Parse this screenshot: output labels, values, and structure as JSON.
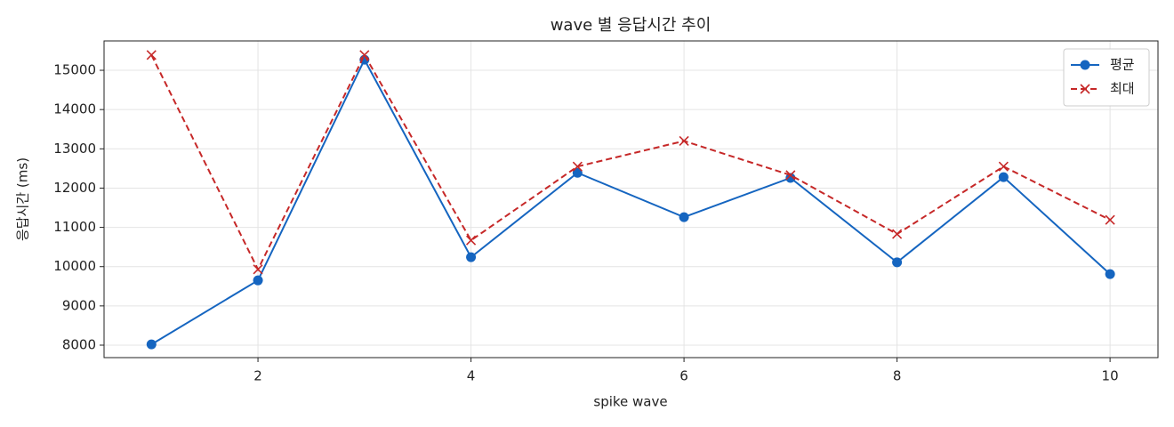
{
  "chart_data": {
    "type": "line",
    "title": "wave 별 응답시간 추이",
    "xlabel": "spike wave",
    "ylabel": "응답시간 (ms)",
    "x": [
      1,
      2,
      3,
      4,
      5,
      6,
      7,
      8,
      9,
      10
    ],
    "series": [
      {
        "name": "평균",
        "color": "#1565c0",
        "marker": "o",
        "linestyle": "solid",
        "values": [
          8020,
          9650,
          15270,
          10240,
          12390,
          11260,
          12260,
          10110,
          12280,
          9810
        ]
      },
      {
        "name": "최대",
        "color": "#c62828",
        "marker": "x",
        "linestyle": "dashed",
        "values": [
          15390,
          9930,
          15390,
          10670,
          12550,
          13200,
          12330,
          10830,
          12550,
          11190
        ]
      }
    ],
    "xlim": [
      0.555,
      10.45
    ],
    "xticks": [
      2,
      4,
      6,
      8,
      10
    ],
    "ylim": [
      7683,
      15748
    ],
    "yticks": [
      8000,
      9000,
      10000,
      11000,
      12000,
      13000,
      14000,
      15000
    ],
    "grid": true,
    "legend": "upper right"
  }
}
